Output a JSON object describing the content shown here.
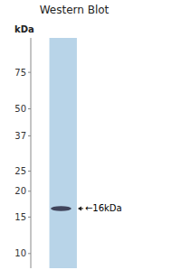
{
  "chart_data": {
    "type": "blot",
    "title": "Western Blot",
    "y_label": "kDa",
    "log": "y",
    "ylim": [
      8.5,
      110
    ],
    "yticks": [
      75,
      50,
      37,
      25,
      20,
      15,
      10
    ],
    "values": [
      16.5
    ],
    "band_heights": [
      0.9
    ],
    "annotations": [
      "←16kDa"
    ],
    "color": "#2a2a42",
    "lane_color": "#b8d4e8"
  }
}
